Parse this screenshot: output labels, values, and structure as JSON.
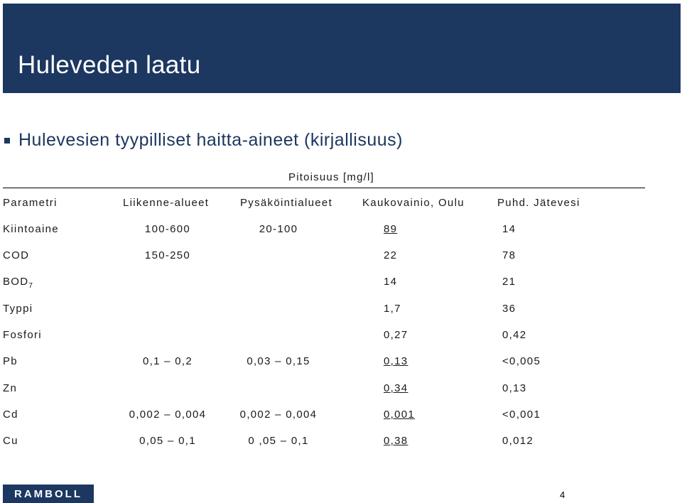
{
  "title": "Huleveden laatu",
  "subtitle": "Hulevesien tyypilliset haitta-aineet (kirjallisuus)",
  "unit_label": "Pitoisuus [mg/l]",
  "table": {
    "headers": [
      "Parametri",
      "Liikenne-alueet",
      "Pysäköintialueet",
      "Kaukovainio, Oulu",
      "Puhd. Jätevesi"
    ],
    "rows": [
      {
        "param": "Kiintoaine",
        "param_sub": "",
        "liikenne": "100-600",
        "pysakointi": "20-100",
        "kaukovainio": "89",
        "kaukovainio_underlined": true,
        "jatevesi": "14"
      },
      {
        "param": "COD",
        "param_sub": "",
        "liikenne": "150-250",
        "pysakointi": "",
        "kaukovainio": "22",
        "kaukovainio_underlined": false,
        "jatevesi": "78"
      },
      {
        "param": "BOD",
        "param_sub": "7",
        "liikenne": "",
        "pysakointi": "",
        "kaukovainio": "14",
        "kaukovainio_underlined": false,
        "jatevesi": "21"
      },
      {
        "param": "Typpi",
        "param_sub": "",
        "liikenne": "",
        "pysakointi": "",
        "kaukovainio": "1,7",
        "kaukovainio_underlined": false,
        "jatevesi": "36"
      },
      {
        "param": "Fosfori",
        "param_sub": "",
        "liikenne": "",
        "pysakointi": "",
        "kaukovainio": "0,27",
        "kaukovainio_underlined": false,
        "jatevesi": "0,42"
      },
      {
        "param": "Pb",
        "param_sub": "",
        "liikenne": "0,1 – 0,2",
        "pysakointi": "0,03 – 0,15",
        "kaukovainio": "0,13",
        "kaukovainio_underlined": true,
        "jatevesi": "<0,005"
      },
      {
        "param": "Zn",
        "param_sub": "",
        "liikenne": "",
        "pysakointi": "",
        "kaukovainio": "0,34",
        "kaukovainio_underlined": true,
        "jatevesi": "0,13"
      },
      {
        "param": "Cd",
        "param_sub": "",
        "liikenne": "0,002 – 0,004",
        "pysakointi": "0,002 – 0,004",
        "kaukovainio": "0,001",
        "kaukovainio_underlined": true,
        "jatevesi": "<0,001"
      },
      {
        "param": "Cu",
        "param_sub": "",
        "liikenne": "0,05 – 0,1",
        "pysakointi": "0 ,05 – 0,1",
        "kaukovainio": "0,38",
        "kaukovainio_underlined": true,
        "jatevesi": "0,012"
      }
    ]
  },
  "logo_text": "RAMBOLL",
  "page_number": "4",
  "colors": {
    "brand": "#1c3760",
    "text": "#1a1a1a"
  }
}
